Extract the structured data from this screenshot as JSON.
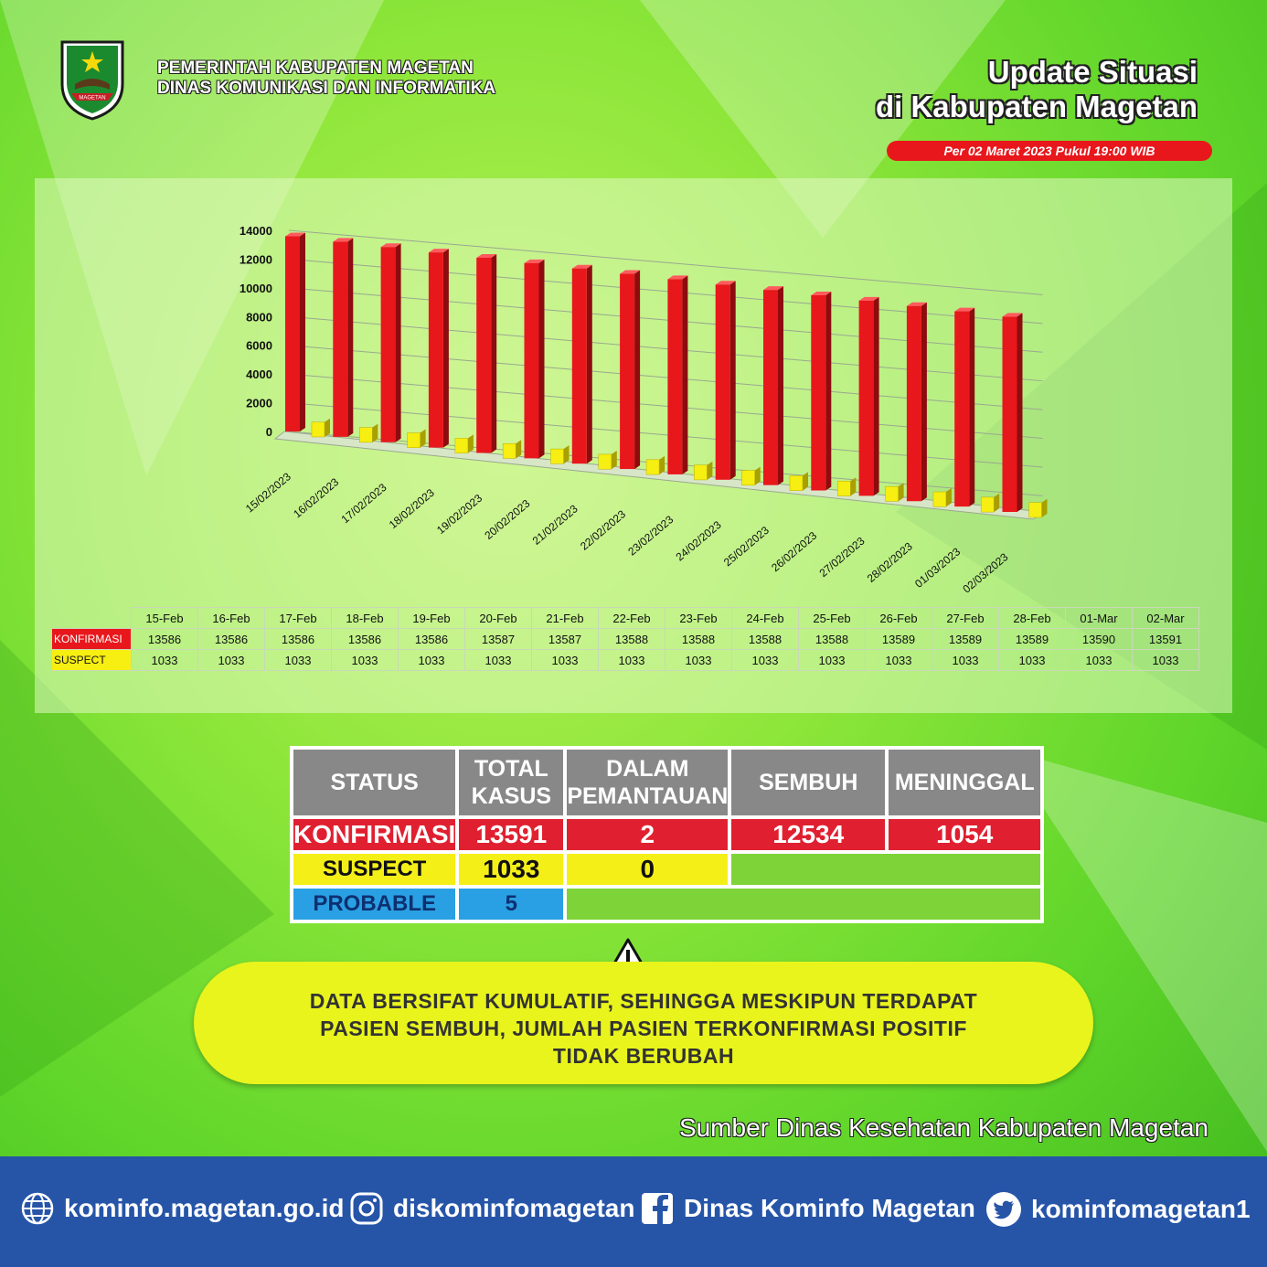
{
  "header": {
    "org_line1": "PEMERINTAH KABUPATEN MAGETAN",
    "org_line2": "DINAS KOMUNIKASI DAN INFORMATIKA",
    "logo_text": "MAGETAN",
    "title_line1": "Update Situasi",
    "title_line2": "di Kabupaten Magetan",
    "date": "Per 02 Maret 2023 Pukul 19:00 WIB"
  },
  "colors": {
    "konfirmasi": "#e8171b",
    "suspect": "#f7ee12",
    "probable": "#2aa0e4",
    "footer": "#2655a8"
  },
  "chart_data": {
    "type": "bar",
    "style": "3d-clustered-column",
    "categories": [
      "15/02/2023",
      "16/02/2023",
      "17/02/2023",
      "18/02/2023",
      "19/02/2023",
      "20/02/2023",
      "21/02/2023",
      "22/02/2023",
      "23/02/2023",
      "24/02/2023",
      "25/02/2023",
      "26/02/2023",
      "27/02/2023",
      "28/02/2023",
      "01/03/2023",
      "02/03/2023"
    ],
    "series": [
      {
        "name": "KONFIRMASI",
        "color": "#e8171b",
        "values": [
          13586,
          13586,
          13586,
          13586,
          13586,
          13587,
          13587,
          13588,
          13588,
          13588,
          13588,
          13589,
          13589,
          13589,
          13590,
          13591
        ]
      },
      {
        "name": "SUSPECT",
        "color": "#f7ee12",
        "values": [
          1033,
          1033,
          1033,
          1033,
          1033,
          1033,
          1033,
          1033,
          1033,
          1033,
          1033,
          1033,
          1033,
          1033,
          1033,
          1033
        ]
      }
    ],
    "ylim": [
      0,
      14000
    ],
    "yticks": [
      "14000",
      "12000",
      "10000",
      "8000",
      "6000",
      "4000",
      "2000",
      "0"
    ],
    "grid": true,
    "table_columns": [
      "15-Feb",
      "16-Feb",
      "17-Feb",
      "18-Feb",
      "19-Feb",
      "20-Feb",
      "21-Feb",
      "22-Feb",
      "23-Feb",
      "24-Feb",
      "25-Feb",
      "26-Feb",
      "27-Feb",
      "28-Feb",
      "01-Mar",
      "02-Mar"
    ]
  },
  "summary": {
    "headers": [
      "STATUS",
      "TOTAL KASUS",
      "DALAM PEMANTAUAN",
      "SEMBUH",
      "MENINGGAL"
    ],
    "konfirmasi": {
      "label": "KONFIRMASI",
      "total": "13591",
      "pemantauan": "2",
      "sembuh": "12534",
      "meninggal": "1054"
    },
    "suspect": {
      "label": "SUSPECT",
      "total": "1033",
      "pemantauan": "0"
    },
    "probable": {
      "label": "PROBABLE",
      "total": "5"
    }
  },
  "notice": {
    "line1": "DATA BERSIFAT KUMULATIF, SEHINGGA MESKIPUN TERDAPAT",
    "line2": "PASIEN SEMBUH, JUMLAH PASIEN TERKONFIRMASI POSITIF",
    "line3": "TIDAK BERUBAH",
    "icon": "warning-icon"
  },
  "source": "Sumber Dinas Kesehatan Kabupaten Magetan",
  "footer": {
    "website": "kominfo.magetan.go.id",
    "instagram": "diskominfomagetan",
    "facebook": "Dinas Kominfo Magetan",
    "twitter": "kominfomagetan1"
  }
}
